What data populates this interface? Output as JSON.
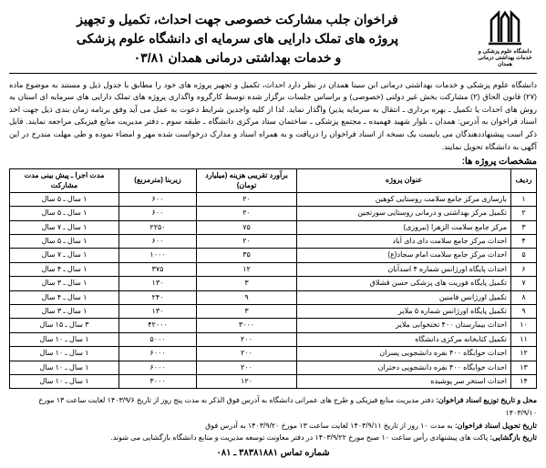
{
  "header": {
    "logo_caption": "دانشگاه علوم پزشکی و\nخدمات بهداشتی درمانی همدان",
    "title_l1": "فراخوان جلب مشارکت خصوصی جهت احداث، تکمیل و تجهیز",
    "title_l2": "پروژه های تملک دارایی های سرمایه ای دانشگاه علوم پزشکی",
    "title_l3": "و خدمات بهداشتی درمانی همدان ۰۳/۸۱"
  },
  "body_para": "دانشگاه علوم پزشکی و خدمات بهداشتی درمانی ابن سینا همدان در نظر دارد احداث، تکمیل و تجهیز پروژه های خود را مطابق با جدول ذیل و مستند به موضوع ماده (۲۷) قانون الحاق (۲) مشارکت بخش غیر دولتی (خصوصی) و براساس جلسات برگزار شده توسط کارگروه واگذاری پروژه های تملک دارایی های سرمایه ای استان به روش های احداث یا تکمیل ـ بهره برداری ـ انتقال به سرمایه پذیر) واگذار نماید. لذا از کلیه واجدین شرایط دعوت به عمل می آید وفق برنامه زمان بندی ذیل جهت اخذ اسناد فراخوان به آدرس: همدان ـ بلوار شهید فهمیده ـ مجتمع پزشکی ـ ساختمان ستاد مرکزی دانشگاه ـ طبقه سوم ـ دفتر مدیریت منابع فیزیکی مراجعه نمایند. قابل ذکر است پیشنهاددهندگان می بایست یک نسخه از اسناد فراخوان را دریافت و به همراه اسناد و مدارک درخواست شده مهر و امضاء نموده و طی مهلت مندرج در این آگهی به دانشگاه تحویل نمایند.",
  "section_title": "مشخصات پروژه ها:",
  "table": {
    "headers": [
      "ردیف",
      "عنوان پروژه",
      "برآورد تقریبی هزینه (میلیارد تومان)",
      "زیربنا (مترمربع)",
      "مدت اجرا ـ پیش بینی مدت مشارکت"
    ],
    "rows": [
      [
        "۱",
        "بازسازی مرکز جامع سلامت روستایی کوهین",
        "۲۰",
        "۶۰۰",
        "۱ سال ـ ۵ سال"
      ],
      [
        "۲",
        "تکمیل مرکز بهداشتی و درمانی روستایی سورتجین",
        "۲۰",
        "۶۰۰",
        "۱ سال ـ ۵ سال"
      ],
      [
        "۳",
        "مرکز جامع سلامت الزهرا (نیروزی)",
        "۷۵",
        "۲۲۵۰",
        "۱ سال ـ ۷ سال"
      ],
      [
        "۴",
        "احداث مرکز جامع سلامت دای دای آباد",
        "۲۰",
        "۶۰۰",
        "۱ سال ـ ۵ سال"
      ],
      [
        "۵",
        "احداث مرکز جامع سلامت امام سجاد(ع)",
        "۳۵",
        "۱۰۰۰",
        "۱ سال ـ ۷ سال"
      ],
      [
        "۶",
        "احداث پایگاه اورژانس شماره ۴ اسدآبان",
        "۱۲",
        "۳۷۵",
        "۱ سال ـ ۴ سال"
      ],
      [
        "۷",
        "تکمیل پایگاه فوریت های پزشکی حسن قشلاق",
        "۳",
        "۱۳۰",
        "۱ سال ـ ۳ سال"
      ],
      [
        "۸",
        "تکمیل اورژانس فامنین",
        "۹",
        "۲۴۰",
        "۱ سال ـ ۴ سال"
      ],
      [
        "۹",
        "تکمیل پایگاه اورژانس شماره ۵ ملایر",
        "۳",
        "۱۳۰",
        "۱ سال ـ ۳ سال"
      ],
      [
        "۱۰",
        "احداث بیمارستان ۴۰۰ تختخوابی ملایر",
        "۳۰۰۰",
        "۴۲۰۰۰",
        "۳ سال ـ ۱۵ سال"
      ],
      [
        "۱۱",
        "تکمیل کتابخانه مرکزی دانشگاه",
        "۲۰۰",
        "۵۰۰۰",
        "۱ سال ـ ۱۰ سال"
      ],
      [
        "۱۲",
        "احداث خوابگاه ۴۰۰ نفره دانشجویی پسران",
        "۲۰۰",
        "۶۰۰۰",
        "۱ سال ـ ۱۰ سال"
      ],
      [
        "۱۳",
        "احداث خوابگاه ۴۰۰ نفره دانشجویی دختران",
        "۲۰۰",
        "۶۰۰۰",
        "۱ سال ـ ۱۰ سال"
      ],
      [
        "۱۴",
        "احداث استخر سر پوشیده",
        "۱۲۰",
        "۳۰۰۰",
        "۱ سال ـ ۱۰ سال"
      ]
    ]
  },
  "footer": {
    "line1_b": "محل و تاریخ توزیع اسناد فراخوان:",
    "line1_t": " دفتر مدیریت منابع فیزیکی و طرح های عمرانی دانشگاه به آدرس فوق الذکر به مدت پنج روز از تاریخ ۱۴۰۳/۹/۶ لغایت ساعت ۱۳ مورخ ۱۴۰۳/۹/۱۰",
    "line2_b": "تاریخ تحویل اسناد فراخوان:",
    "line2_t": " به مدت ۱۰ روز از تاریخ ۱۴۰۳/۹/۱۱ لغایت ساعت ۱۳ مورخ ۱۴۰۳/۹/۲۰ به آدرس فوق",
    "line3_b": "تاریخ بازگشایی:",
    "line3_t": " پاکت های پیشنهادی رأس ساعت ۱۰ صبح مورخ ۱۴۰۳/۹/۲۲ در دفتر معاونت توسعه مدیریت و منابع دانشگاه بازگشایی می شوند.",
    "phone": "شماره تماس ۳۸۳۸۱۸۸۱ ـ ۰۸۱"
  }
}
